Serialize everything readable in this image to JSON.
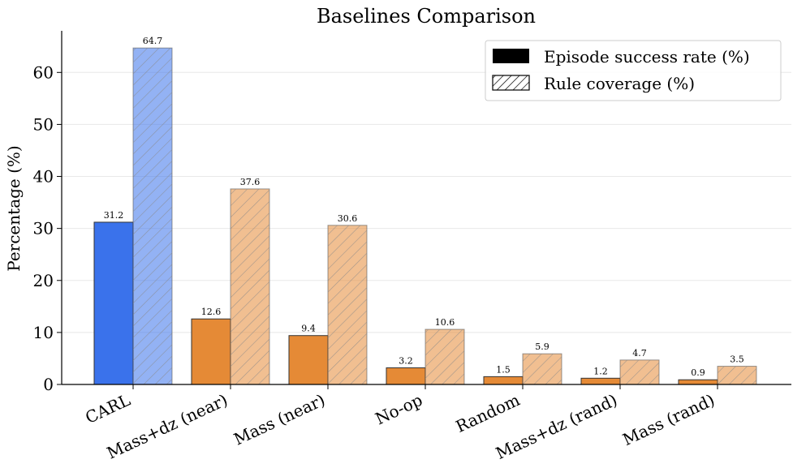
{
  "chart_data": {
    "type": "bar",
    "title": "Baselines Comparison",
    "xlabel": "",
    "ylabel": "Percentage (%)",
    "ylim": [
      0,
      68
    ],
    "yticks": [
      0,
      10,
      20,
      30,
      40,
      50,
      60
    ],
    "grid": "horizontal",
    "legend_position": "top-right",
    "categories": [
      "CARL",
      "Mass+dz (near)",
      "Mass (near)",
      "No-op",
      "Random",
      "Mass+dz (rand)",
      "Mass (rand)"
    ],
    "series": [
      {
        "name": "Episode success rate (%)",
        "pattern": "solid",
        "values": [
          31.2,
          12.6,
          9.4,
          3.2,
          1.5,
          1.2,
          0.9
        ]
      },
      {
        "name": "Rule coverage (%)",
        "pattern": "hatched",
        "values": [
          64.7,
          37.6,
          30.6,
          10.6,
          5.9,
          4.7,
          3.5
        ]
      }
    ],
    "data_labels": [
      [
        "31.2",
        "12.6",
        "9.4",
        "3.2",
        "1.5",
        "1.2",
        "0.9"
      ],
      [
        "64.7",
        "37.6",
        "30.6",
        "10.6",
        "5.9",
        "4.7",
        "3.5"
      ]
    ],
    "colors": {
      "highlight": "#3a72eb",
      "baseline": "#e58a36",
      "grid": "#e8e8e8",
      "axis": "#000000"
    }
  }
}
